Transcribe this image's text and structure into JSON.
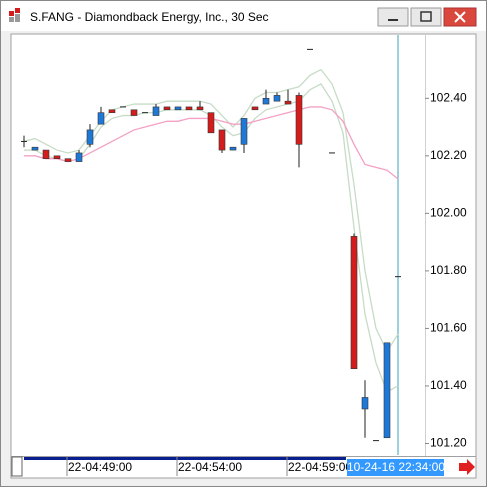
{
  "window_title": "S.FANG - Diamondback Energy, Inc., 30 Sec",
  "chart_data": {
    "type": "candlestick",
    "categories": [
      null,
      null,
      null,
      null,
      "22-04:49:00",
      null,
      null,
      null,
      null,
      null,
      null,
      null,
      null,
      null,
      "22-04:54:00",
      null,
      null,
      null,
      null,
      null,
      null,
      null,
      null,
      null,
      "22-04:59:00",
      null,
      null,
      null,
      null,
      null,
      null,
      null,
      null,
      null,
      "10-24-16 22:34:00"
    ],
    "open": [
      102.25,
      102.22,
      102.22,
      102.2,
      102.19,
      102.18,
      102.24,
      102.31,
      102.36,
      102.37,
      102.36,
      102.35,
      102.34,
      102.37,
      102.36,
      102.37,
      102.37,
      102.35,
      102.29,
      102.22,
      102.24,
      102.37,
      102.38,
      102.39,
      102.39,
      102.41,
      102.57,
      null,
      102.21,
      null,
      101.92,
      101.32,
      101.21,
      101.22,
      101.78
    ],
    "high": [
      102.27,
      102.23,
      102.22,
      102.2,
      102.19,
      102.22,
      102.31,
      102.37,
      102.36,
      102.37,
      102.36,
      102.35,
      102.38,
      102.37,
      102.37,
      102.37,
      102.39,
      102.35,
      102.29,
      102.23,
      102.33,
      102.37,
      102.43,
      102.42,
      102.43,
      102.42,
      102.57,
      null,
      102.21,
      null,
      101.93,
      101.42,
      101.21,
      101.55,
      101.78
    ],
    "low": [
      102.23,
      102.22,
      102.19,
      102.19,
      102.18,
      102.18,
      102.23,
      102.31,
      102.35,
      102.37,
      102.34,
      102.35,
      102.34,
      102.36,
      102.36,
      102.36,
      102.36,
      102.28,
      102.21,
      102.22,
      102.21,
      102.36,
      102.38,
      102.39,
      102.38,
      102.16,
      102.57,
      null,
      102.21,
      null,
      101.46,
      101.22,
      101.21,
      101.22,
      101.78
    ],
    "close": [
      102.25,
      102.23,
      102.19,
      102.19,
      102.18,
      102.21,
      102.29,
      102.35,
      102.35,
      102.37,
      102.34,
      102.35,
      102.37,
      102.36,
      102.37,
      102.36,
      102.36,
      102.28,
      102.22,
      102.23,
      102.33,
      102.36,
      102.4,
      102.41,
      102.38,
      102.24,
      102.57,
      null,
      102.21,
      null,
      101.46,
      101.36,
      101.21,
      101.55,
      101.78
    ],
    "up_color": "#1e78d7",
    "down_color": "#d41c1c",
    "lines": [
      {
        "color": "#c6dcc6",
        "values": [
          102.25,
          102.26,
          102.24,
          102.22,
          102.21,
          102.22,
          102.27,
          102.32,
          102.36,
          102.37,
          102.38,
          102.38,
          102.38,
          102.39,
          102.39,
          102.39,
          102.39,
          102.38,
          102.34,
          102.3,
          102.34,
          102.4,
          102.42,
          102.42,
          102.43,
          102.44,
          102.48,
          102.5,
          102.45,
          102.35,
          102.1,
          101.8,
          101.6,
          101.52,
          101.58
        ]
      },
      {
        "color": "#c6dcc6",
        "values": [
          102.22,
          102.22,
          102.2,
          102.19,
          102.18,
          102.19,
          102.24,
          102.3,
          102.33,
          102.34,
          102.34,
          102.35,
          102.35,
          102.36,
          102.36,
          102.36,
          102.36,
          102.34,
          102.3,
          102.27,
          102.28,
          102.33,
          102.36,
          102.37,
          102.38,
          102.39,
          102.43,
          102.45,
          102.39,
          102.28,
          101.95,
          101.65,
          101.48,
          101.38,
          101.4
        ]
      },
      {
        "color": "#f4a0c4",
        "values": [
          102.2,
          102.2,
          102.19,
          102.19,
          102.18,
          102.19,
          102.21,
          102.23,
          102.25,
          102.27,
          102.29,
          102.3,
          102.31,
          102.32,
          102.32,
          102.33,
          102.33,
          102.33,
          102.32,
          102.31,
          102.31,
          102.32,
          102.33,
          102.34,
          102.35,
          102.36,
          102.37,
          102.37,
          102.36,
          102.32,
          102.24,
          102.17,
          102.16,
          102.15,
          102.12
        ]
      }
    ],
    "ylim": [
      101.16,
      102.62
    ],
    "yticks": [
      {
        "value": 101.2,
        "label": "101.20"
      },
      {
        "value": 101.4,
        "label": "101.40"
      },
      {
        "value": 101.6,
        "label": "101.60"
      },
      {
        "value": 101.8,
        "label": "101.80"
      },
      {
        "value": 102.0,
        "label": "102.00"
      },
      {
        "value": 102.2,
        "label": "102.20"
      },
      {
        "value": 102.4,
        "label": "102.40"
      }
    ]
  }
}
